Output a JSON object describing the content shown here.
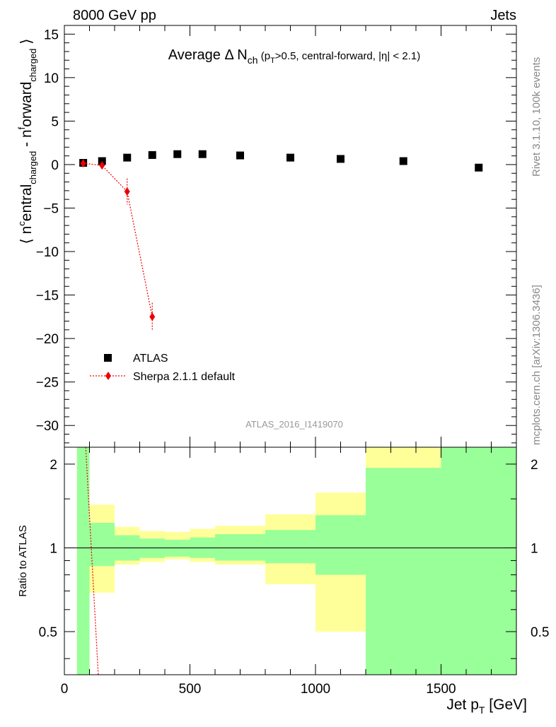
{
  "header": {
    "left": "8000 GeV pp",
    "right": "Jets"
  },
  "side_labels": {
    "rivet": "Rivet 3.1.10,  100k events",
    "mcplots": "mcplots.cern.ch [arXiv:1306.3436]"
  },
  "watermark": "ATLAS_2016_I1419070",
  "chart_data": [
    {
      "type": "scatter",
      "title": {
        "main": "Average Δ N",
        "main_sub": "ch",
        "cond_a": " (p",
        "cond_sub": "T",
        "cond_b": ">0.5, central-forward, |η| < 2.1)"
      },
      "ylabel": {
        "a": "⟨ n",
        "sup1": "c",
        "b": "entral",
        "sub1": "charged",
        "c": " - n",
        "sup2": "f",
        "d": "orward",
        "sub2": "charged",
        "e": " ⟩"
      },
      "xlim": [
        0,
        1800
      ],
      "ylim": [
        -32.5,
        16
      ],
      "yticks": [
        15,
        10,
        5,
        0,
        -5,
        -10,
        -15,
        -20,
        -25,
        -30
      ],
      "ytick_labels": [
        "15",
        "10",
        "5",
        "0",
        "−5",
        "−10",
        "−15",
        "−20",
        "−25",
        "−30"
      ],
      "legend": {
        "placement": "bottom-left",
        "entries": [
          "ATLAS",
          "Sherpa 2.1.1 default"
        ]
      },
      "series": [
        {
          "name": "ATLAS",
          "marker": "square",
          "color": "#000000",
          "x": [
            75,
            150,
            250,
            350,
            450,
            550,
            700,
            900,
            1100,
            1350,
            1650
          ],
          "y": [
            0.2,
            0.4,
            0.8,
            1.1,
            1.2,
            1.2,
            1.05,
            0.8,
            0.65,
            0.4,
            -0.35
          ]
        },
        {
          "name": "Sherpa 2.1.1 default",
          "marker": "diamond",
          "line": "dotted",
          "color": "#ee0000",
          "x": [
            75,
            150,
            250,
            350
          ],
          "y": [
            0.15,
            -0.1,
            -3.1,
            -17.5
          ],
          "err": [
            0.3,
            0.3,
            1.5,
            1.6
          ]
        }
      ]
    },
    {
      "type": "area",
      "ylabel": "Ratio to ATLAS",
      "xlabel": {
        "a": "Jet p",
        "sub": "T",
        "b": " [GeV]"
      },
      "xlim": [
        0,
        1800
      ],
      "xticks": [
        0,
        500,
        1000,
        1500
      ],
      "xtick_labels": [
        "0",
        "500",
        "1000",
        "1500"
      ],
      "ylim": [
        0.35,
        2.3
      ],
      "yticks": [
        2,
        1,
        0.5
      ],
      "ytick_labels": [
        "2",
        "1",
        "0.5"
      ],
      "band_colors": {
        "stat": "#99ff99",
        "total": "#ffff99"
      },
      "bins": [
        {
          "x0": 50,
          "x1": 100,
          "green_lo": 0.35,
          "green_hi": 2.3,
          "yellow_lo": 0.35,
          "yellow_hi": 2.3
        },
        {
          "x0": 100,
          "x1": 200,
          "green_lo": 0.86,
          "green_hi": 1.23,
          "yellow_lo": 0.69,
          "yellow_hi": 1.43
        },
        {
          "x0": 200,
          "x1": 300,
          "green_lo": 0.9,
          "green_hi": 1.11,
          "yellow_lo": 0.87,
          "yellow_hi": 1.19
        },
        {
          "x0": 300,
          "x1": 400,
          "green_lo": 0.92,
          "green_hi": 1.08,
          "yellow_lo": 0.89,
          "yellow_hi": 1.15
        },
        {
          "x0": 400,
          "x1": 500,
          "green_lo": 0.93,
          "green_hi": 1.07,
          "yellow_lo": 0.91,
          "yellow_hi": 1.14
        },
        {
          "x0": 500,
          "x1": 600,
          "green_lo": 0.92,
          "green_hi": 1.09,
          "yellow_lo": 0.89,
          "yellow_hi": 1.17
        },
        {
          "x0": 600,
          "x1": 800,
          "green_lo": 0.9,
          "green_hi": 1.12,
          "yellow_lo": 0.87,
          "yellow_hi": 1.2
        },
        {
          "x0": 800,
          "x1": 1000,
          "green_lo": 0.88,
          "green_hi": 1.16,
          "yellow_lo": 0.74,
          "yellow_hi": 1.32
        },
        {
          "x0": 1000,
          "x1": 1200,
          "green_lo": 0.8,
          "green_hi": 1.31,
          "yellow_lo": 0.5,
          "yellow_hi": 1.58
        },
        {
          "x0": 1200,
          "x1": 1500,
          "green_lo": 0.35,
          "green_hi": 1.94,
          "yellow_lo": 0.35,
          "yellow_hi": 2.3
        },
        {
          "x0": 1500,
          "x1": 1800,
          "green_lo": 0.35,
          "green_hi": 2.3,
          "yellow_lo": 0.35,
          "yellow_hi": 2.3
        }
      ],
      "ratio_line": {
        "name": "Sherpa 2.1.1 default",
        "color": "#ee0000",
        "x": [
          85,
          135
        ],
        "y": [
          2.3,
          0.35
        ]
      }
    }
  ]
}
